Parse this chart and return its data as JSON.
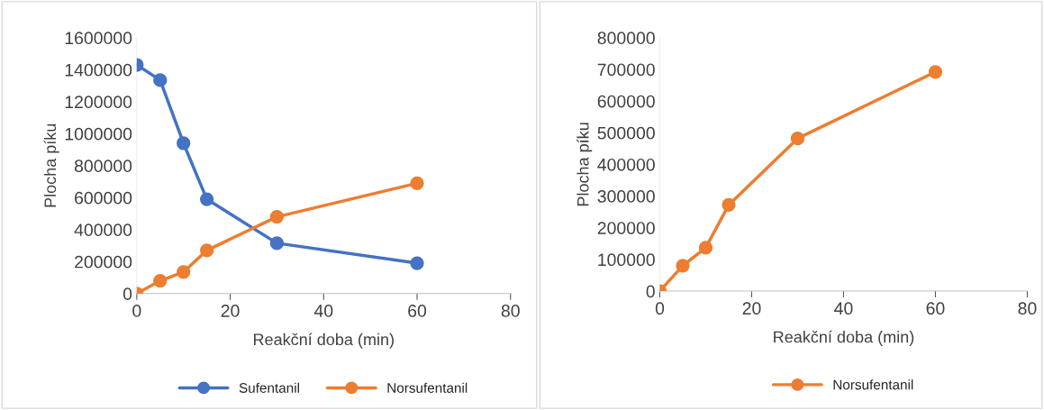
{
  "chart_data": [
    {
      "type": "line",
      "xlabel": "Reakční doba (min)",
      "ylabel": "Plocha píku",
      "x": [
        0,
        5,
        10,
        15,
        30,
        60
      ],
      "series": [
        {
          "name": "Sufentanil",
          "color": "#4472c4",
          "values": [
            1430000,
            1335000,
            940000,
            590000,
            315000,
            190000
          ]
        },
        {
          "name": "Norsufentanil",
          "color": "#ed7d31",
          "values": [
            0,
            80000,
            135000,
            270000,
            480000,
            690000
          ]
        }
      ],
      "xlim": [
        0,
        80
      ],
      "xticks": [
        0,
        20,
        40,
        60,
        80
      ],
      "ylim": [
        0,
        1600000
      ],
      "yticks": [
        0,
        200000,
        400000,
        600000,
        800000,
        1000000,
        1200000,
        1400000,
        1600000
      ],
      "grid": false,
      "legend": "bottom",
      "marker": "circle",
      "line_style": "solid"
    },
    {
      "type": "line",
      "xlabel": "Reakční doba (min)",
      "ylabel": "Plocha píku",
      "x": [
        0,
        5,
        10,
        15,
        30,
        60
      ],
      "series": [
        {
          "name": "Norsufentanil",
          "color": "#ed7d31",
          "values": [
            0,
            80000,
            137000,
            272000,
            482000,
            692000
          ]
        }
      ],
      "xlim": [
        0,
        80
      ],
      "xticks": [
        0,
        20,
        40,
        60,
        80
      ],
      "ylim": [
        0,
        800000
      ],
      "yticks": [
        0,
        100000,
        200000,
        300000,
        400000,
        500000,
        600000,
        700000,
        800000
      ],
      "grid": false,
      "legend": "bottom",
      "marker": "circle",
      "line_style": "solid"
    }
  ]
}
